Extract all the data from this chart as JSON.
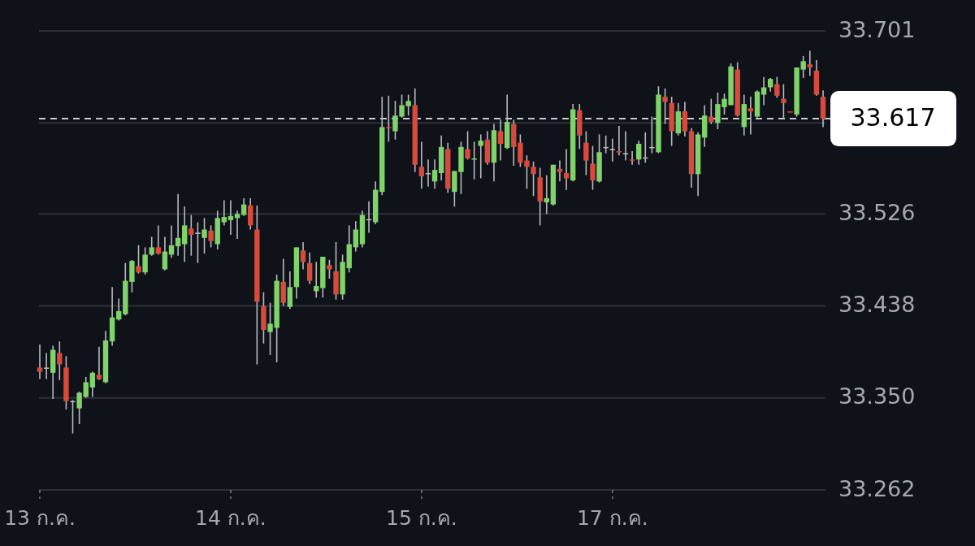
{
  "chart_data": {
    "type": "candlestick",
    "categories": [
      "13 ก.ค.",
      null,
      null,
      null,
      null,
      null,
      null,
      null,
      null,
      null,
      null,
      null,
      null,
      null,
      null,
      null,
      null,
      null,
      null,
      null,
      null,
      null,
      null,
      null,
      null,
      null,
      null,
      null,
      null,
      "14 ก.ค.",
      null,
      null,
      null,
      null,
      null,
      null,
      null,
      null,
      null,
      null,
      null,
      null,
      null,
      null,
      null,
      null,
      null,
      null,
      null,
      null,
      null,
      null,
      null,
      null,
      null,
      null,
      null,
      null,
      "15 ก.ค.",
      null,
      null,
      null,
      null,
      null,
      null,
      null,
      null,
      null,
      null,
      null,
      null,
      null,
      null,
      null,
      null,
      null,
      null,
      null,
      null,
      null,
      null,
      null,
      null,
      null,
      null,
      null,
      null,
      "17 ก.ค.",
      null,
      null,
      null,
      null,
      null,
      null,
      null,
      null,
      null,
      null,
      null,
      null,
      null,
      null,
      null,
      null,
      null,
      null,
      null,
      null,
      null,
      null,
      null,
      null,
      null,
      null,
      null,
      null,
      null,
      null,
      null,
      null
    ],
    "ohlc": [
      [
        33.379,
        33.401,
        33.368,
        33.375
      ],
      [
        33.379,
        33.393,
        33.368,
        33.379
      ],
      [
        33.374,
        33.4,
        33.349,
        33.396
      ],
      [
        33.393,
        33.404,
        33.367,
        33.382
      ],
      [
        33.379,
        33.39,
        33.339,
        33.347
      ],
      [
        33.347,
        33.348,
        33.316,
        33.347
      ],
      [
        33.34,
        33.356,
        33.325,
        33.355
      ],
      [
        33.351,
        33.37,
        33.35,
        33.365
      ],
      [
        33.36,
        33.375,
        33.351,
        33.374
      ],
      [
        33.372,
        33.399,
        33.367,
        33.368
      ],
      [
        33.365,
        33.414,
        33.364,
        33.405
      ],
      [
        33.404,
        33.456,
        33.4,
        33.427
      ],
      [
        33.425,
        33.445,
        33.424,
        33.433
      ],
      [
        33.43,
        33.479,
        33.429,
        33.462
      ],
      [
        33.461,
        33.482,
        33.451,
        33.481
      ],
      [
        33.476,
        33.496,
        33.469,
        33.47
      ],
      [
        33.47,
        33.494,
        33.468,
        33.487
      ],
      [
        33.487,
        33.504,
        33.486,
        33.494
      ],
      [
        33.494,
        33.515,
        33.487,
        33.488
      ],
      [
        33.473,
        33.504,
        33.472,
        33.49
      ],
      [
        33.487,
        33.515,
        33.484,
        33.496
      ],
      [
        33.495,
        33.545,
        33.486,
        33.503
      ],
      [
        33.497,
        33.533,
        33.48,
        33.515
      ],
      [
        33.512,
        33.525,
        33.486,
        33.506
      ],
      [
        33.508,
        33.518,
        33.479,
        33.508
      ],
      [
        33.503,
        33.522,
        33.488,
        33.511
      ],
      [
        33.51,
        33.515,
        33.494,
        33.5
      ],
      [
        33.497,
        33.529,
        33.492,
        33.522
      ],
      [
        33.518,
        33.539,
        33.515,
        33.523
      ],
      [
        33.52,
        33.539,
        33.506,
        33.524
      ],
      [
        33.522,
        33.529,
        33.502,
        33.526
      ],
      [
        33.525,
        33.541,
        33.524,
        33.535
      ],
      [
        33.534,
        33.541,
        33.511,
        33.515
      ],
      [
        33.511,
        33.534,
        33.382,
        33.442
      ],
      [
        33.438,
        33.451,
        33.402,
        33.415
      ],
      [
        33.413,
        33.441,
        33.391,
        33.421
      ],
      [
        33.417,
        33.468,
        33.384,
        33.462
      ],
      [
        33.461,
        33.483,
        33.438,
        33.441
      ],
      [
        33.437,
        33.471,
        33.435,
        33.456
      ],
      [
        33.456,
        33.494,
        33.445,
        33.494
      ],
      [
        33.491,
        33.499,
        33.473,
        33.48
      ],
      [
        33.479,
        33.489,
        33.459,
        33.462
      ],
      [
        33.452,
        33.48,
        33.446,
        33.457
      ],
      [
        33.455,
        33.485,
        33.446,
        33.485
      ],
      [
        33.477,
        33.482,
        33.464,
        33.473
      ],
      [
        33.471,
        33.499,
        33.444,
        33.449
      ],
      [
        33.449,
        33.487,
        33.444,
        33.48
      ],
      [
        33.474,
        33.515,
        33.47,
        33.497
      ],
      [
        33.494,
        33.519,
        33.49,
        33.511
      ],
      [
        33.497,
        33.529,
        33.494,
        33.525
      ],
      [
        33.521,
        33.538,
        33.508,
        33.521
      ],
      [
        33.518,
        33.557,
        33.516,
        33.549
      ],
      [
        33.547,
        33.638,
        33.544,
        33.609
      ],
      [
        33.609,
        33.639,
        33.595,
        33.608
      ],
      [
        33.605,
        33.634,
        33.597,
        33.62
      ],
      [
        33.619,
        33.64,
        33.618,
        33.63
      ],
      [
        33.629,
        33.64,
        33.62,
        33.634
      ],
      [
        33.63,
        33.646,
        33.566,
        33.573
      ],
      [
        33.571,
        33.595,
        33.55,
        33.562
      ],
      [
        33.565,
        33.578,
        33.552,
        33.565
      ],
      [
        33.557,
        33.578,
        33.55,
        33.568
      ],
      [
        33.565,
        33.601,
        33.558,
        33.59
      ],
      [
        33.588,
        33.594,
        33.546,
        33.55
      ],
      [
        33.547,
        33.567,
        33.533,
        33.567
      ],
      [
        33.566,
        33.595,
        33.545,
        33.59
      ],
      [
        33.588,
        33.605,
        33.578,
        33.579
      ],
      [
        33.578,
        33.595,
        33.559,
        33.579
      ],
      [
        33.591,
        33.602,
        33.56,
        33.596
      ],
      [
        33.597,
        33.605,
        33.573,
        33.575
      ],
      [
        33.575,
        33.612,
        33.557,
        33.606
      ],
      [
        33.605,
        33.616,
        33.577,
        33.593
      ],
      [
        33.589,
        33.64,
        33.588,
        33.614
      ],
      [
        33.612,
        33.616,
        33.572,
        33.59
      ],
      [
        33.594,
        33.602,
        33.571,
        33.575
      ],
      [
        33.577,
        33.582,
        33.55,
        33.571
      ],
      [
        33.571,
        33.576,
        33.543,
        33.564
      ],
      [
        33.561,
        33.57,
        33.515,
        33.538
      ],
      [
        33.537,
        33.563,
        33.526,
        33.541
      ],
      [
        33.535,
        33.573,
        33.534,
        33.573
      ],
      [
        33.569,
        33.577,
        33.557,
        33.566
      ],
      [
        33.565,
        33.588,
        33.549,
        33.56
      ],
      [
        33.558,
        33.631,
        33.557,
        33.626
      ],
      [
        33.625,
        33.631,
        33.588,
        33.601
      ],
      [
        33.594,
        33.605,
        33.563,
        33.577
      ],
      [
        33.574,
        33.591,
        33.549,
        33.558
      ],
      [
        33.557,
        33.602,
        33.556,
        33.585
      ],
      [
        33.59,
        33.601,
        33.584,
        33.59
      ],
      [
        33.588,
        33.598,
        33.576,
        33.588
      ],
      [
        33.586,
        33.61,
        33.582,
        33.585
      ],
      [
        33.584,
        33.605,
        33.577,
        33.584
      ],
      [
        33.578,
        33.586,
        33.573,
        33.577
      ],
      [
        33.578,
        33.596,
        33.573,
        33.593
      ],
      [
        33.58,
        33.604,
        33.575,
        33.58
      ],
      [
        33.59,
        33.619,
        33.584,
        33.59
      ],
      [
        33.585,
        33.648,
        33.584,
        33.64
      ],
      [
        33.638,
        33.646,
        33.612,
        33.633
      ],
      [
        33.632,
        33.638,
        33.591,
        33.605
      ],
      [
        33.603,
        33.632,
        33.601,
        33.624
      ],
      [
        33.624,
        33.633,
        33.6,
        33.605
      ],
      [
        33.605,
        33.608,
        33.551,
        33.564
      ],
      [
        33.564,
        33.604,
        33.543,
        33.602
      ],
      [
        33.599,
        33.63,
        33.59,
        33.62
      ],
      [
        33.619,
        33.636,
        33.612,
        33.614
      ],
      [
        33.613,
        33.642,
        33.607,
        33.631
      ],
      [
        33.628,
        33.641,
        33.621,
        33.636
      ],
      [
        33.63,
        33.67,
        33.63,
        33.667
      ],
      [
        33.664,
        33.671,
        33.619,
        33.62
      ],
      [
        33.609,
        33.64,
        33.601,
        33.631
      ],
      [
        33.627,
        33.638,
        33.602,
        33.624
      ],
      [
        33.619,
        33.644,
        33.618,
        33.643
      ],
      [
        33.64,
        33.657,
        33.63,
        33.647
      ],
      [
        33.647,
        33.656,
        33.643,
        33.655
      ],
      [
        33.65,
        33.657,
        33.637,
        33.639
      ],
      [
        33.636,
        33.65,
        33.618,
        33.632
      ],
      [
        33.624,
        33.624,
        33.623,
        33.623
      ],
      [
        33.621,
        33.666,
        33.619,
        33.666
      ],
      [
        33.664,
        33.677,
        33.656,
        33.672
      ],
      [
        33.669,
        33.682,
        33.658,
        33.666
      ],
      [
        33.663,
        33.673,
        33.639,
        33.64
      ],
      [
        33.638,
        33.644,
        33.609,
        33.617
      ]
    ],
    "ylim": [
      33.262,
      33.701
    ],
    "yticks": [
      33.262,
      {
        "value": 33.35,
        "label": "33.350"
      },
      33.438,
      33.526,
      {
        "value": 33.613,
        "label": null
      },
      33.701
    ],
    "grid": true,
    "ref_lines": [
      {
        "axis": "y",
        "value": 33.617,
        "label": "33.617",
        "line_style": "dashed"
      }
    ]
  }
}
